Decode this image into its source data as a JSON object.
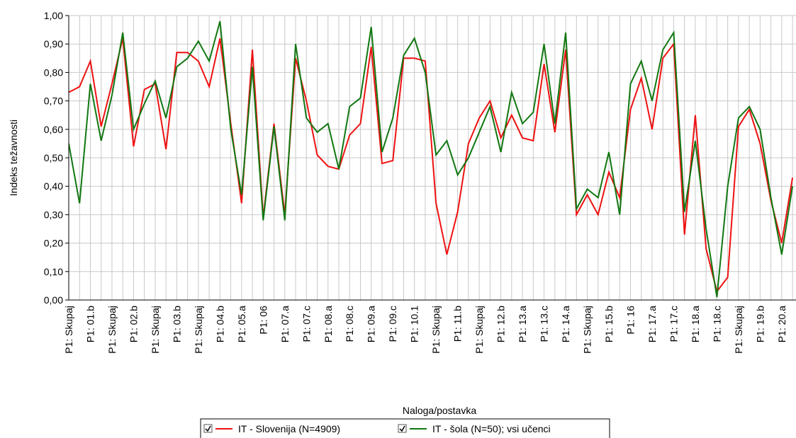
{
  "chart_data": {
    "type": "line",
    "xlabel": "Naloga/postavka",
    "ylabel": "Indeks težavnosti",
    "categories": [
      "P1: Skupaj",
      null,
      "P1: 01.b",
      null,
      "P1: Skupaj",
      null,
      "P1: 02.b",
      null,
      "P1: Skupaj",
      null,
      "P1: 03.b",
      null,
      "P1: Skupaj",
      null,
      "P1: 04.b",
      null,
      "P1: 05.a",
      null,
      "P1: 06",
      null,
      "P1: 07.a",
      null,
      "P1: 07.c",
      null,
      "P1: 08.a",
      null,
      "P1: 08.c",
      null,
      "P1: 09.a",
      null,
      "P1: 09.c",
      null,
      "P1: 10.1",
      null,
      "P1: Skupaj",
      null,
      "P1: 11.b",
      null,
      "P1: Skupaj",
      null,
      "P1: 12.b",
      null,
      "P1: 13.a",
      null,
      "P1: 13.c",
      null,
      "P1: 14.a",
      null,
      "P1: Skupaj",
      null,
      "P1: 15.b",
      null,
      "P1: 16",
      null,
      "P1: 17.a",
      null,
      "P1: 17.c",
      null,
      "P1: 18.a",
      null,
      "P1: 18.c",
      null,
      "P1: Skupaj",
      null,
      "P1: 19.b",
      null,
      "P1: 20.a",
      null
    ],
    "series": [
      {
        "name": "IT - Slovenija (N=4909)",
        "color": "#ee1111",
        "values": [
          0.73,
          0.75,
          0.84,
          0.61,
          0.76,
          0.92,
          0.54,
          0.74,
          0.76,
          0.53,
          0.87,
          0.87,
          0.84,
          0.75,
          0.92,
          0.62,
          0.34,
          0.88,
          0.29,
          0.62,
          0.3,
          0.85,
          0.7,
          0.51,
          0.47,
          0.46,
          0.58,
          0.62,
          0.89,
          0.48,
          0.49,
          0.85,
          0.85,
          0.84,
          0.34,
          0.16,
          0.31,
          0.55,
          0.64,
          0.7,
          0.57,
          0.65,
          0.57,
          0.56,
          0.83,
          0.59,
          0.88,
          0.3,
          0.37,
          0.3,
          0.45,
          0.36,
          0.67,
          0.78,
          0.6,
          0.85,
          0.9,
          0.23,
          0.65,
          0.18,
          0.03,
          0.08,
          0.61,
          0.67,
          0.55,
          0.35,
          0.2,
          0.43
        ]
      },
      {
        "name": "IT - šola (N=50); vsi učenci",
        "color": "#117711",
        "values": [
          0.55,
          0.34,
          0.76,
          0.56,
          0.72,
          0.94,
          0.6,
          0.69,
          0.77,
          0.64,
          0.82,
          0.85,
          0.91,
          0.84,
          0.98,
          0.6,
          0.37,
          0.82,
          0.28,
          0.61,
          0.28,
          0.9,
          0.64,
          0.59,
          0.62,
          0.46,
          0.68,
          0.71,
          0.96,
          0.52,
          0.64,
          0.86,
          0.92,
          0.8,
          0.51,
          0.56,
          0.44,
          0.5,
          0.59,
          0.68,
          0.52,
          0.73,
          0.62,
          0.66,
          0.9,
          0.62,
          0.94,
          0.32,
          0.39,
          0.36,
          0.52,
          0.3,
          0.76,
          0.84,
          0.7,
          0.88,
          0.94,
          0.31,
          0.56,
          0.25,
          0.01,
          0.4,
          0.64,
          0.68,
          0.6,
          0.36,
          0.16,
          0.4
        ]
      }
    ],
    "ylim": [
      0,
      1
    ],
    "yticks": [
      {
        "value": 0,
        "label": "0,00"
      },
      {
        "value": 0.1,
        "label": "0,10"
      },
      {
        "value": 0.2,
        "label": "0,20"
      },
      {
        "value": 0.3,
        "label": "0,30"
      },
      {
        "value": 0.4,
        "label": "0,40"
      },
      {
        "value": 0.5,
        "label": "0,50"
      },
      {
        "value": 0.6,
        "label": "0,60"
      },
      {
        "value": 0.7,
        "label": "0,70"
      },
      {
        "value": 0.8,
        "label": "0,80"
      },
      {
        "value": 0.9,
        "label": "0,90"
      },
      {
        "value": 1,
        "label": "1,00"
      }
    ],
    "grid": true
  }
}
